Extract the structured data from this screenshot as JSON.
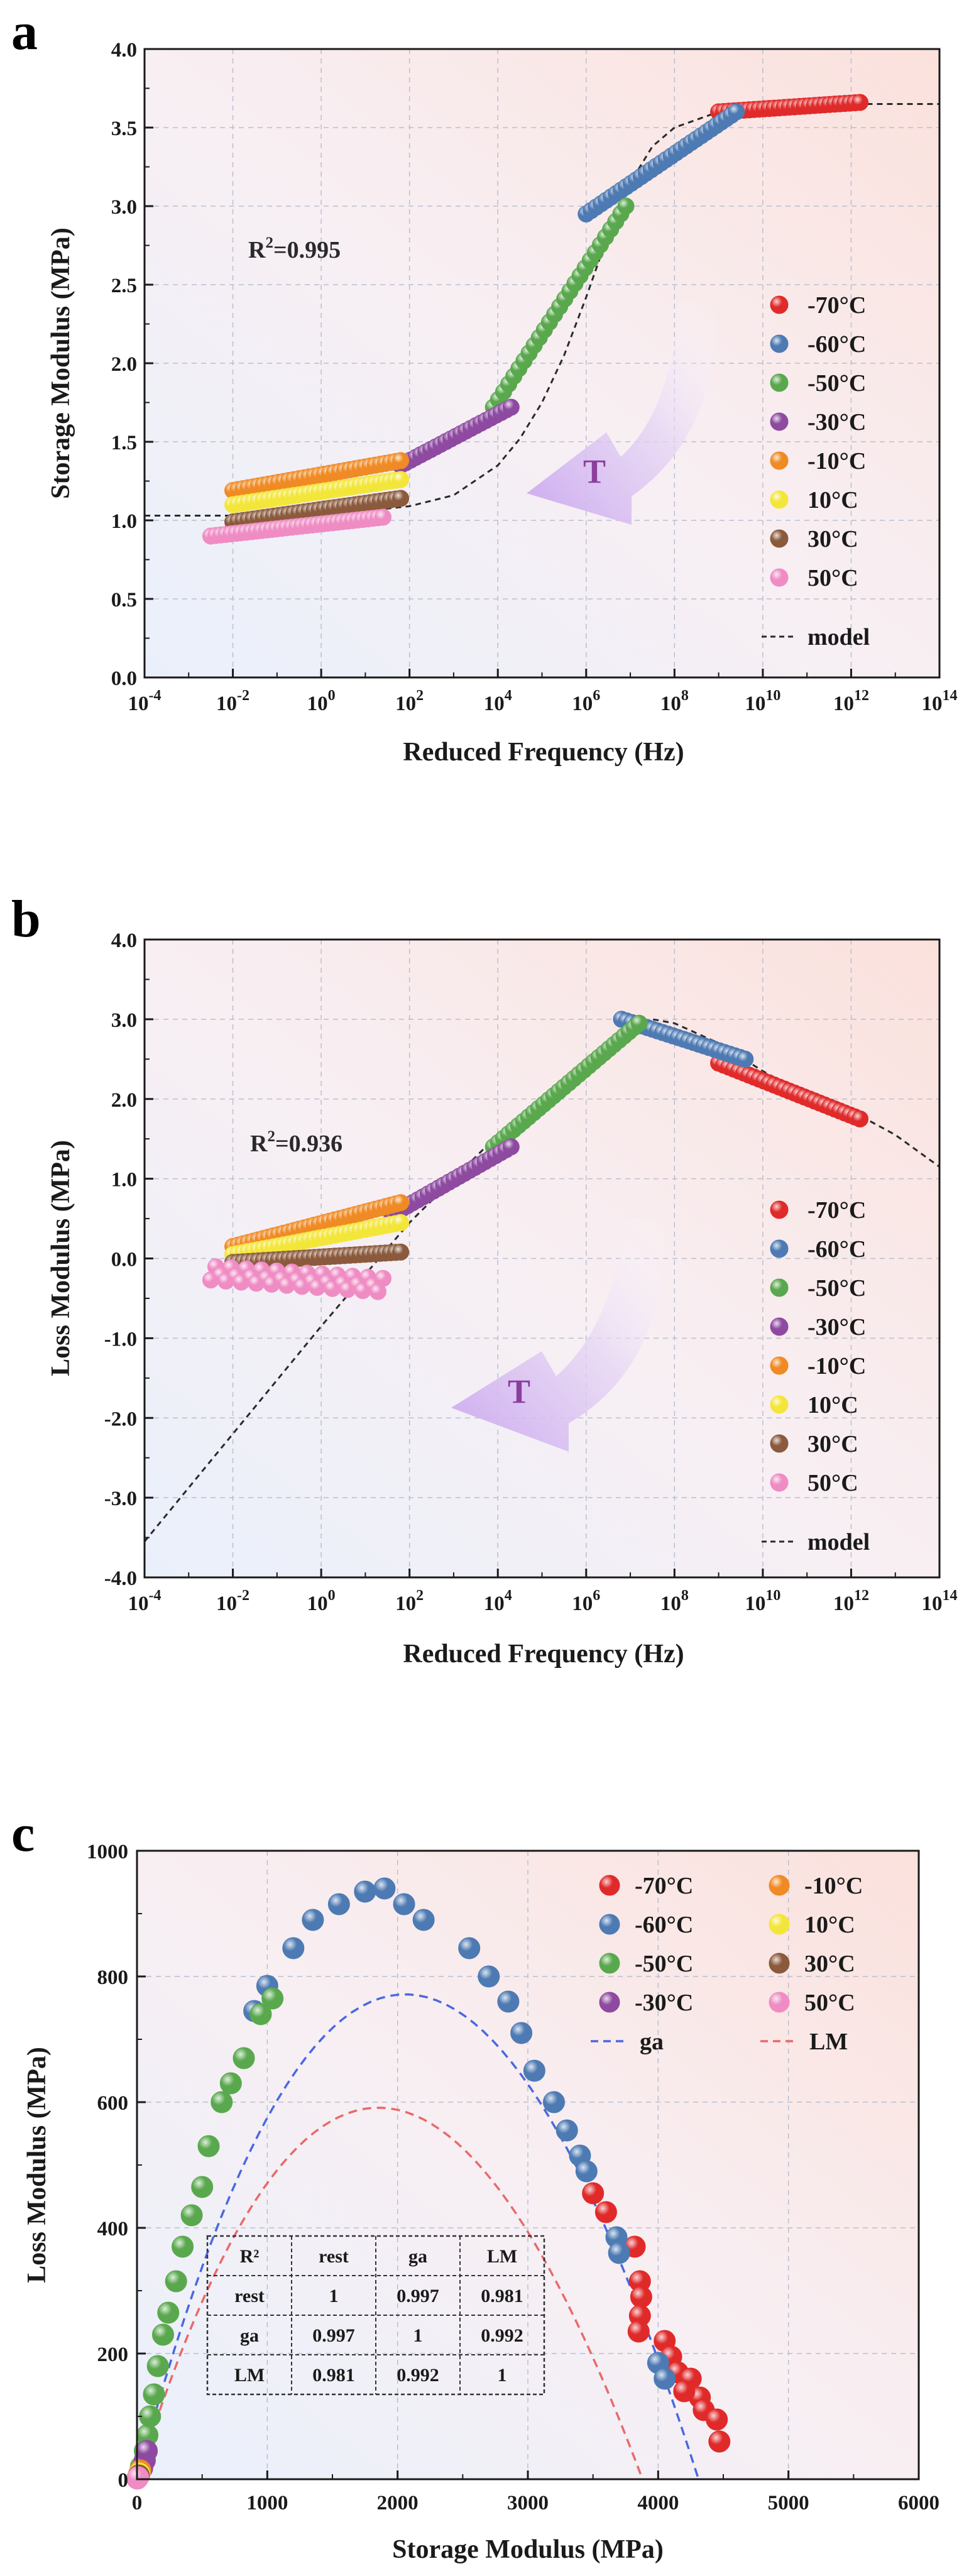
{
  "chart_data": [
    {
      "panel": "a",
      "type": "scatter",
      "xlabel": "Reduced Frequency (Hz)",
      "ylabel": "Storage Modulus (MPa)",
      "xscale": "log",
      "x_exp_range": [
        -4,
        14
      ],
      "x_ticks": [
        {
          "base": "10",
          "exp": "-4"
        },
        {
          "base": "10",
          "exp": "-2"
        },
        {
          "base": "10",
          "exp": "0"
        },
        {
          "base": "10",
          "exp": "2"
        },
        {
          "base": "10",
          "exp": "4"
        },
        {
          "base": "10",
          "exp": "6"
        },
        {
          "base": "10",
          "exp": "8"
        },
        {
          "base": "10",
          "exp": "10"
        },
        {
          "base": "10",
          "exp": "12"
        },
        {
          "base": "10",
          "exp": "14"
        }
      ],
      "ylim": [
        0,
        4
      ],
      "y_ticks": [
        "0.0",
        "0.5",
        "1.0",
        "1.5",
        "2.0",
        "2.5",
        "3.0",
        "3.5",
        "4.0"
      ],
      "annotation": {
        "base": "R",
        "sup": "2",
        "rest": "=0.995"
      },
      "arrow_label": "T",
      "legend_position": "right",
      "series": [
        {
          "name": "-70°C",
          "color": "#e02a2a",
          "log_range": [
            9.0,
            12.2
          ],
          "y_range": [
            3.6,
            3.66
          ]
        },
        {
          "name": "-60°C",
          "color": "#4d7ab3",
          "log_range": [
            6.0,
            9.4
          ],
          "y_range": [
            2.95,
            3.6
          ]
        },
        {
          "name": "-50°C",
          "color": "#5aa84e",
          "log_range": [
            3.9,
            6.9
          ],
          "y_range": [
            1.72,
            3.0
          ]
        },
        {
          "name": "-30°C",
          "color": "#8e4aa0",
          "log_range": [
            1.8,
            4.3
          ],
          "y_range": [
            1.35,
            1.72
          ]
        },
        {
          "name": "-10°C",
          "color": "#f08a24",
          "log_range": [
            -2.0,
            1.8
          ],
          "y_range": [
            1.19,
            1.38
          ]
        },
        {
          "name": "10°C",
          "color": "#f3e63a",
          "log_range": [
            -2.0,
            1.8
          ],
          "y_range": [
            1.1,
            1.26
          ]
        },
        {
          "name": "30°C",
          "color": "#8b5a3c",
          "log_range": [
            -2.0,
            1.8
          ],
          "y_range": [
            0.99,
            1.14
          ]
        },
        {
          "name": "50°C",
          "color": "#ef8cc4",
          "log_range": [
            -2.5,
            1.4
          ],
          "y_range": [
            0.9,
            1.02
          ]
        }
      ],
      "model": {
        "name": "model",
        "log_x": [
          -4,
          -2,
          0,
          1,
          2,
          3,
          4,
          4.5,
          5,
          5.5,
          6,
          6.5,
          7,
          7.5,
          8,
          9,
          10,
          11,
          12,
          14
        ],
        "y": [
          1.03,
          1.03,
          1.04,
          1.06,
          1.09,
          1.16,
          1.35,
          1.52,
          1.75,
          2.05,
          2.42,
          2.82,
          3.15,
          3.38,
          3.5,
          3.6,
          3.63,
          3.64,
          3.65,
          3.65
        ]
      }
    },
    {
      "panel": "b",
      "type": "scatter",
      "xlabel": "Reduced Frequency (Hz)",
      "ylabel": "Loss Modulus (MPa)",
      "xscale": "log",
      "x_exp_range": [
        -4,
        14
      ],
      "x_ticks": [
        {
          "base": "10",
          "exp": "-4"
        },
        {
          "base": "10",
          "exp": "-2"
        },
        {
          "base": "10",
          "exp": "0"
        },
        {
          "base": "10",
          "exp": "2"
        },
        {
          "base": "10",
          "exp": "4"
        },
        {
          "base": "10",
          "exp": "6"
        },
        {
          "base": "10",
          "exp": "8"
        },
        {
          "base": "10",
          "exp": "10"
        },
        {
          "base": "10",
          "exp": "12"
        },
        {
          "base": "10",
          "exp": "14"
        }
      ],
      "ylim": [
        -4,
        4
      ],
      "y_ticks": [
        "-4.0",
        "-3.0",
        "-2.0",
        "-1.0",
        "0.0",
        "1.0",
        "2.0",
        "3.0",
        "4.0"
      ],
      "annotation": {
        "base": "R",
        "sup": "2",
        "rest": "=0.936"
      },
      "arrow_label": "T",
      "legend_position": "right",
      "series": [
        {
          "name": "-70°C",
          "color": "#e02a2a",
          "log_range": [
            9.0,
            12.2
          ],
          "y_range": [
            2.45,
            1.75
          ]
        },
        {
          "name": "-60°C",
          "color": "#4d7ab3",
          "log_range": [
            6.8,
            9.6
          ],
          "y_range": [
            3.0,
            2.5
          ]
        },
        {
          "name": "-50°C",
          "color": "#5aa84e",
          "log_range": [
            3.9,
            7.2
          ],
          "y_range": [
            1.4,
            2.95
          ]
        },
        {
          "name": "-30°C",
          "color": "#8e4aa0",
          "log_range": [
            1.6,
            4.3
          ],
          "y_range": [
            0.55,
            1.4
          ]
        },
        {
          "name": "-10°C",
          "color": "#f08a24",
          "log_range": [
            -2.0,
            1.8
          ],
          "y_range": [
            0.15,
            0.7
          ]
        },
        {
          "name": "10°C",
          "color": "#f3e63a",
          "log_range": [
            -2.0,
            1.8
          ],
          "y_range": [
            0.05,
            0.45
          ]
        },
        {
          "name": "30°C",
          "color": "#8b5a3c",
          "log_range": [
            -2.0,
            1.8
          ],
          "y_range": [
            -0.05,
            0.08
          ]
        },
        {
          "name": "50°C",
          "color": "#ef8cc4",
          "log_range": [
            -2.5,
            1.4
          ],
          "y_range": [
            -0.15,
            -0.3
          ]
        }
      ],
      "model": {
        "name": "model",
        "log_x": [
          -4,
          0,
          2,
          4,
          6,
          7,
          7.5,
          8,
          9,
          10,
          11,
          12,
          13,
          14
        ],
        "y": [
          -3.55,
          -0.85,
          0.45,
          1.55,
          2.45,
          2.9,
          3.0,
          2.95,
          2.7,
          2.35,
          2.05,
          1.85,
          1.55,
          1.15
        ]
      }
    },
    {
      "panel": "c",
      "type": "scatter",
      "xlabel": "Storage Modulus (MPa)",
      "ylabel": "Loss Modulus (MPa)",
      "xlim": [
        0,
        6000
      ],
      "ylim": [
        0,
        1000
      ],
      "x_ticks": [
        "0",
        "1000",
        "2000",
        "3000",
        "4000",
        "5000",
        "6000"
      ],
      "y_ticks": [
        "0",
        "200",
        "400",
        "600",
        "800",
        "1000"
      ],
      "legend_position": "top-right",
      "series": [
        {
          "name": "-70°C",
          "color": "#e02a2a",
          "points": [
            [
              3500,
              455
            ],
            [
              3600,
              425
            ],
            [
              3820,
              370
            ],
            [
              3860,
              315
            ],
            [
              3870,
              290
            ],
            [
              3860,
              260
            ],
            [
              3850,
              235
            ],
            [
              4050,
              220
            ],
            [
              4100,
              195
            ],
            [
              4150,
              170
            ],
            [
              4250,
              160
            ],
            [
              4320,
              130
            ],
            [
              4200,
              140
            ],
            [
              4350,
              110
            ],
            [
              4450,
              95
            ],
            [
              4470,
              60
            ]
          ]
        },
        {
          "name": "-60°C",
          "color": "#4d7ab3",
          "points": [
            [
              900,
              745
            ],
            [
              1000,
              785
            ],
            [
              1200,
              845
            ],
            [
              1350,
              890
            ],
            [
              1550,
              915
            ],
            [
              1750,
              935
            ],
            [
              1900,
              940
            ],
            [
              2050,
              915
            ],
            [
              2200,
              890
            ],
            [
              2550,
              845
            ],
            [
              2700,
              800
            ],
            [
              2850,
              760
            ],
            [
              2950,
              710
            ],
            [
              3050,
              650
            ],
            [
              3200,
              600
            ],
            [
              3300,
              555
            ],
            [
              3400,
              515
            ],
            [
              3450,
              490
            ],
            [
              3680,
              385
            ],
            [
              3700,
              360
            ],
            [
              4000,
              185
            ],
            [
              4050,
              160
            ]
          ]
        },
        {
          "name": "-50°C",
          "color": "#5aa84e",
          "points": [
            [
              30,
              20
            ],
            [
              60,
              45
            ],
            [
              80,
              70
            ],
            [
              100,
              100
            ],
            [
              130,
              135
            ],
            [
              160,
              180
            ],
            [
              200,
              230
            ],
            [
              240,
              265
            ],
            [
              300,
              315
            ],
            [
              350,
              370
            ],
            [
              420,
              420
            ],
            [
              500,
              465
            ],
            [
              550,
              530
            ],
            [
              650,
              600
            ],
            [
              720,
              630
            ],
            [
              820,
              670
            ],
            [
              950,
              740
            ],
            [
              1040,
              765
            ]
          ]
        },
        {
          "name": "-30°C",
          "color": "#8e4aa0",
          "points": [
            [
              20,
              10
            ],
            [
              40,
              18
            ],
            [
              60,
              30
            ],
            [
              75,
              45
            ]
          ]
        },
        {
          "name": "-10°C",
          "color": "#f08a24",
          "points": [
            [
              15,
              8
            ],
            [
              25,
              14
            ]
          ]
        },
        {
          "name": "10°C",
          "color": "#f3e63a",
          "points": [
            [
              12,
              6
            ],
            [
              18,
              9
            ]
          ]
        },
        {
          "name": "30°C",
          "color": "#8b5a3c",
          "points": [
            [
              10,
              4
            ],
            [
              14,
              6
            ]
          ]
        },
        {
          "name": "50°C",
          "color": "#ef8cc4",
          "points": [
            [
              2,
              1
            ],
            [
              5,
              2
            ],
            [
              8,
              3
            ]
          ]
        }
      ],
      "models": [
        {
          "name": "ga",
          "color": "#4a68e0",
          "x_span": [
            0,
            4310
          ],
          "peak": 770
        },
        {
          "name": "LM",
          "color": "#e86a6a",
          "x_span": [
            0,
            3880
          ],
          "peak": 590
        }
      ],
      "table": {
        "header": [
          "R²",
          "rest",
          "ga",
          "LM"
        ],
        "rows": [
          [
            "rest",
            "1",
            "0.997",
            "0.981"
          ],
          [
            "ga",
            "0.997",
            "1",
            "0.992"
          ],
          [
            "LM",
            "0.981",
            "0.992",
            "1"
          ]
        ]
      }
    }
  ]
}
